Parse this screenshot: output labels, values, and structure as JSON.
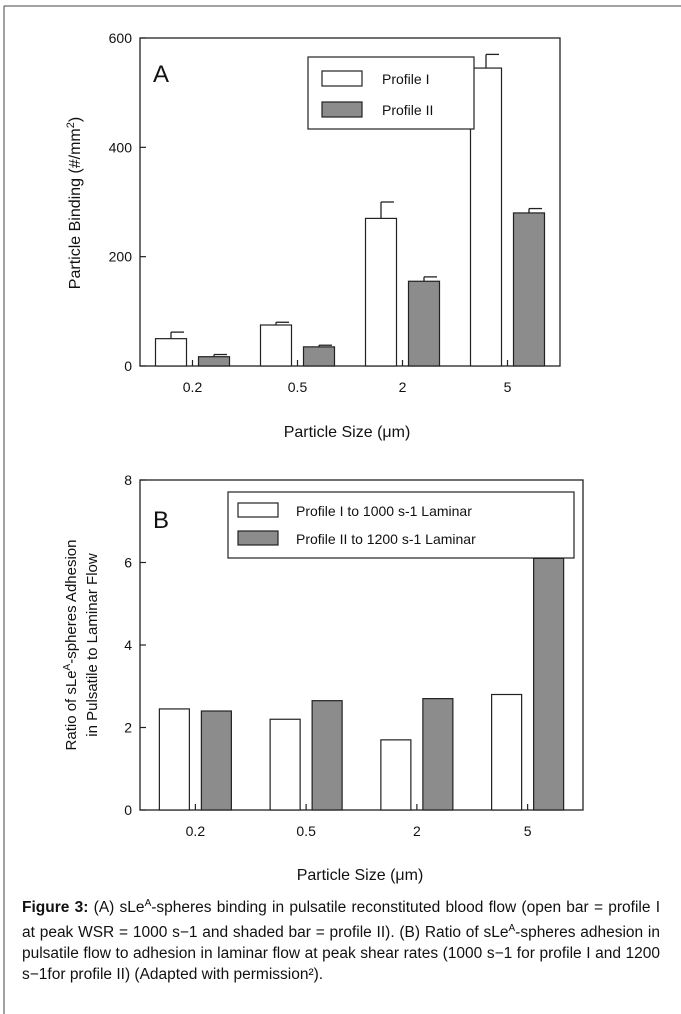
{
  "chart_data": [
    {
      "type": "bar",
      "panel_label": "A",
      "categories": [
        "0.2",
        "0.5",
        "2",
        "5"
      ],
      "series": [
        {
          "name": "Profile I",
          "values": [
            50,
            75,
            270,
            545
          ],
          "errors": [
            12,
            5,
            30,
            25
          ],
          "fill": "#ffffff"
        },
        {
          "name": "Profile II",
          "values": [
            17,
            35,
            155,
            280
          ],
          "errors": [
            4,
            3,
            8,
            8
          ],
          "fill": "#8c8c8c"
        }
      ],
      "xlabel": "Particle Size (μm)",
      "ylabel_main": "Particle Binding (#/mm",
      "ylabel_sup": "2",
      "ylabel_tail": ")",
      "ylim": [
        0,
        600
      ],
      "yticks": [
        "0",
        "200",
        "400",
        "600"
      ],
      "legend": "top-right"
    },
    {
      "type": "bar",
      "panel_label": "B",
      "categories": [
        "0.2",
        "0.5",
        "2",
        "5"
      ],
      "series": [
        {
          "name": "Profile I  to 1000 s-1 Laminar",
          "values": [
            2.45,
            2.2,
            1.7,
            2.8
          ],
          "fill": "#ffffff"
        },
        {
          "name": "Profile II to 1200 s-1 Laminar",
          "values": [
            2.4,
            2.65,
            2.7,
            6.1
          ],
          "fill": "#8c8c8c"
        }
      ],
      "xlabel": "Particle Size (μm)",
      "ylabel_line1_pre": "Ratio of sLe",
      "ylabel_line1_sup": "A",
      "ylabel_line1_post": "-spheres Adhesion",
      "ylabel_line2": "in Pulsatile to  Laminar Flow",
      "ylim": [
        0,
        8
      ],
      "yticks": [
        "0",
        "2",
        "4",
        "6",
        "8"
      ],
      "legend": "top-right"
    }
  ],
  "caption": {
    "label": "Figure 3:",
    "text": " (A) sLe^A-spheres binding in pulsatile reconstituted blood flow (open bar = profile I at peak WSR = 1000 s−1 and shaded bar = profile II). (B) Ratio of sLe^A-spheres adhesion in pulsatile flow to adhesion in laminar flow at peak shear rates (1000 s−1 for profile I and 1200 s−1for profile II) (Adapted with permission²)."
  }
}
